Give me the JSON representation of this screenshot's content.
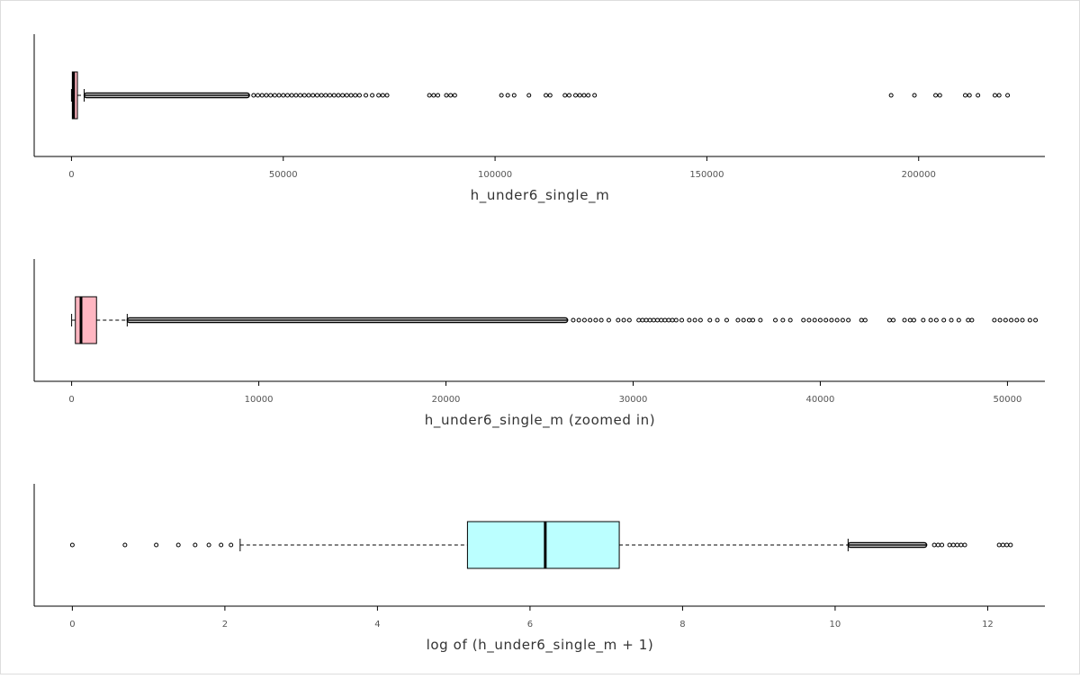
{
  "chart_data": [
    {
      "type": "boxplot",
      "orientation": "horizontal",
      "xlabel": "h_under6_single_m",
      "xlim": [
        -8800,
        229800
      ],
      "xticks": [
        0,
        50000,
        100000,
        150000,
        200000
      ],
      "xtick_labels": [
        "0",
        "50000",
        "100000",
        "150000",
        "200000"
      ],
      "box": {
        "whisker_low": 0,
        "q1": 200,
        "median": 500,
        "q3": 1400,
        "whisker_high": 3000
      },
      "fill_color": "#ffb6c1",
      "dense_outliers": {
        "from": 3000,
        "to": 42000
      },
      "outliers": [
        43000,
        44000,
        45000,
        46000,
        47000,
        48000,
        49000,
        50000,
        51000,
        52000,
        53000,
        54000,
        55000,
        56000,
        57000,
        58000,
        59000,
        60000,
        61000,
        62000,
        63000,
        64000,
        65000,
        66000,
        67000,
        68000,
        69500,
        71000,
        72500,
        73500,
        74500,
        84500,
        85500,
        86500,
        88500,
        89500,
        90500,
        101500,
        103000,
        104500,
        108000,
        112000,
        113000,
        116500,
        117500,
        119000,
        120000,
        121000,
        122000,
        123500,
        193500,
        199000,
        204000,
        205000,
        211000,
        212000,
        214000,
        218000,
        219000,
        221000
      ]
    },
    {
      "type": "boxplot",
      "orientation": "horizontal",
      "xlabel": "h_under6_single_m (zoomed in)",
      "xlim": [
        -2000,
        52000
      ],
      "xticks": [
        0,
        10000,
        20000,
        30000,
        40000,
        50000
      ],
      "xtick_labels": [
        "0",
        "10000",
        "20000",
        "30000",
        "40000",
        "50000"
      ],
      "box": {
        "whisker_low": 0,
        "q1": 200,
        "median": 500,
        "q3": 1330,
        "whisker_high": 2970
      },
      "fill_color": "#ffb6c1",
      "dense_outliers": {
        "from": 2970,
        "to": 26500
      },
      "outliers": [
        26800,
        27100,
        27400,
        27700,
        28000,
        28300,
        28700,
        29200,
        29500,
        29800,
        30300,
        30500,
        30700,
        30900,
        31100,
        31300,
        31500,
        31700,
        31900,
        32100,
        32300,
        32600,
        33000,
        33300,
        33600,
        34100,
        34500,
        35000,
        35600,
        35900,
        36200,
        36400,
        36800,
        37600,
        38000,
        38400,
        39100,
        39400,
        39700,
        40000,
        40300,
        40600,
        40900,
        41200,
        41500,
        42200,
        42400,
        43700,
        43900,
        44500,
        44800,
        45000,
        45500,
        45900,
        46200,
        46600,
        47000,
        47400,
        47900,
        48100,
        49300,
        49600,
        49900,
        50200,
        50500,
        50800,
        51200,
        51500
      ]
    },
    {
      "type": "boxplot",
      "orientation": "horizontal",
      "xlabel": "log of (h_under6_single_m + 1)",
      "xlim": [
        -0.5,
        12.75
      ],
      "xticks": [
        0,
        2,
        4,
        6,
        8,
        10,
        12
      ],
      "xtick_labels": [
        "0",
        "2",
        "4",
        "6",
        "8",
        "10",
        "12"
      ],
      "box": {
        "whisker_low": 2.2,
        "q1": 5.18,
        "median": 6.2,
        "q3": 7.17,
        "whisker_high": 10.17
      },
      "fill_color": "#bbffff",
      "dense_outliers": {
        "from": 10.17,
        "to": 11.2
      },
      "outliers": [
        0,
        0.69,
        1.1,
        1.39,
        1.61,
        1.79,
        1.95,
        2.08,
        11.3,
        11.35,
        11.4,
        11.5,
        11.55,
        11.6,
        11.65,
        11.7,
        12.15,
        12.2,
        12.25,
        12.3
      ]
    }
  ]
}
